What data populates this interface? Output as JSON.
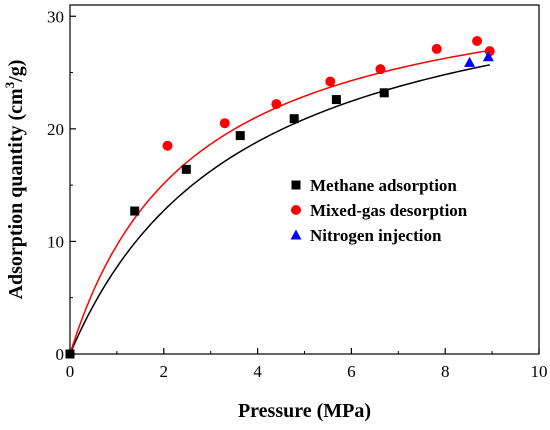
{
  "chart_data": {
    "type": "scatter",
    "xlabel": "Pressure (MPa)",
    "ylabel": {
      "main": "Adsorption quantity (cm",
      "sup": "3",
      "tail": "/g)"
    },
    "xlim": [
      0,
      10
    ],
    "ylim": [
      0,
      31
    ],
    "xticks": [
      0,
      2,
      4,
      6,
      8,
      10
    ],
    "yticks": [
      0,
      10,
      20,
      30
    ],
    "legend_position": "right-middle",
    "series": [
      {
        "name": "Methane adsorption",
        "marker": "square",
        "color": "#000000",
        "points": [
          [
            0,
            0
          ],
          [
            1.38,
            12.7
          ],
          [
            2.48,
            16.4
          ],
          [
            3.63,
            19.4
          ],
          [
            4.78,
            20.9
          ],
          [
            5.68,
            22.6
          ],
          [
            6.7,
            23.2
          ]
        ]
      },
      {
        "name": "Mixed-gas desorption",
        "marker": "circle",
        "color": "#ff0000",
        "points": [
          [
            2.08,
            18.5
          ],
          [
            3.3,
            20.5
          ],
          [
            4.4,
            22.2
          ],
          [
            5.55,
            24.2
          ],
          [
            6.62,
            25.3
          ],
          [
            7.82,
            27.1
          ],
          [
            8.68,
            27.8
          ],
          [
            8.95,
            26.9
          ]
        ]
      },
      {
        "name": "Nitrogen injection",
        "marker": "triangle",
        "color": "#0000ff",
        "points": [
          [
            8.52,
            25.9
          ],
          [
            8.92,
            26.4
          ]
        ]
      }
    ],
    "fit_curves": [
      {
        "color": "#000000",
        "vl": 36.3,
        "pl": 3.7,
        "x_range": [
          0,
          8.95
        ]
      },
      {
        "color": "#ff0000",
        "vl": 34.8,
        "pl": 2.6,
        "x_range": [
          0,
          8.95
        ]
      }
    ]
  }
}
